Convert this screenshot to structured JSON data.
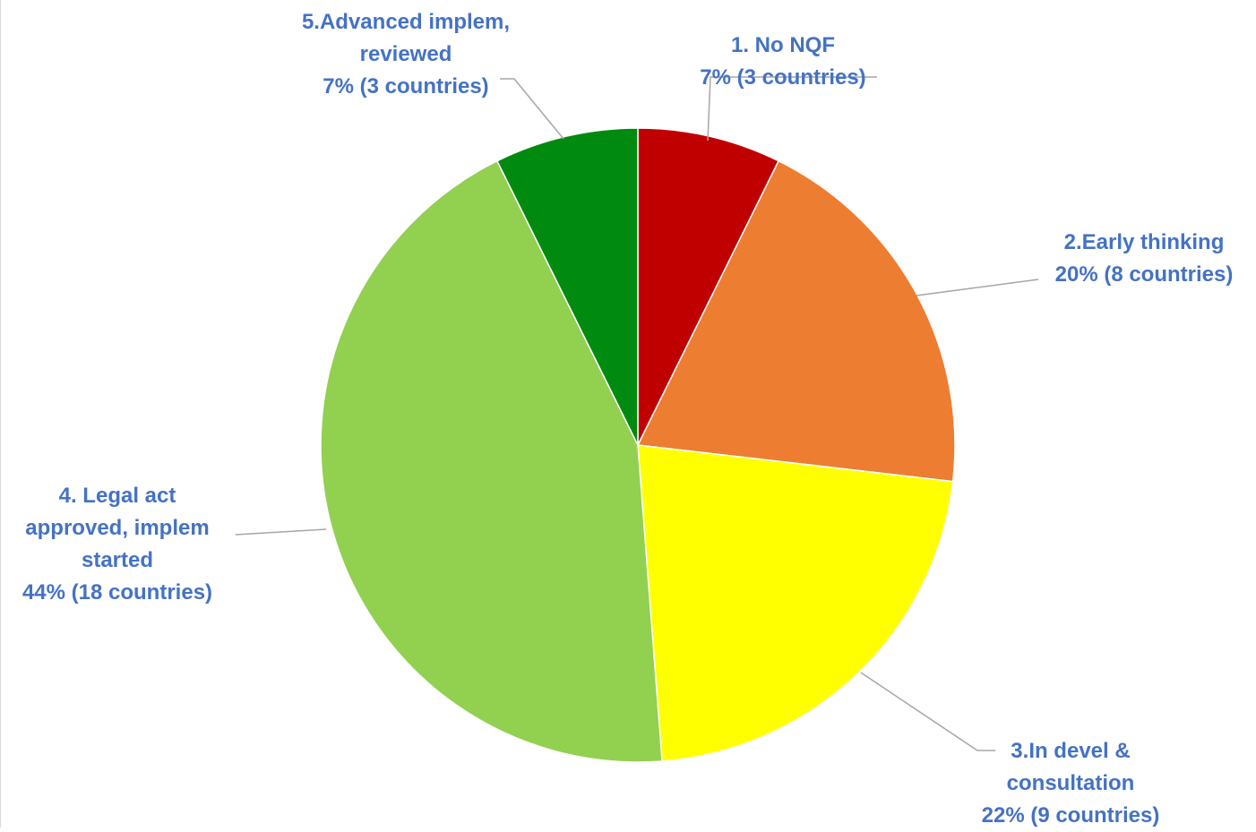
{
  "chart_data": {
    "type": "pie",
    "title": "",
    "label_color": "#4472C4",
    "leader_color": "#a6a6a6",
    "slices": [
      {
        "label_lines": [
          "1. No NQF",
          "7% (3 countries)"
        ],
        "percent": 7,
        "countries": 3,
        "value": 3,
        "color": "#C00000"
      },
      {
        "label_lines": [
          "2.Early thinking",
          "20% (8 countries)"
        ],
        "percent": 20,
        "countries": 8,
        "value": 8,
        "color": "#ED7D31"
      },
      {
        "label_lines": [
          "3.In devel &",
          "consultation",
          "22% (9 countries)"
        ],
        "percent": 22,
        "countries": 9,
        "value": 9,
        "color": "#FFFF00"
      },
      {
        "label_lines": [
          "4. Legal act",
          "approved, implem",
          "started",
          "44% (18 countries)"
        ],
        "percent": 44,
        "countries": 18,
        "value": 18,
        "color": "#92D050"
      },
      {
        "label_lines": [
          "5.Advanced implem,",
          "reviewed",
          "7% (3 countries)"
        ],
        "percent": 7,
        "countries": 3,
        "value": 3,
        "color": "#008A10"
      }
    ]
  }
}
